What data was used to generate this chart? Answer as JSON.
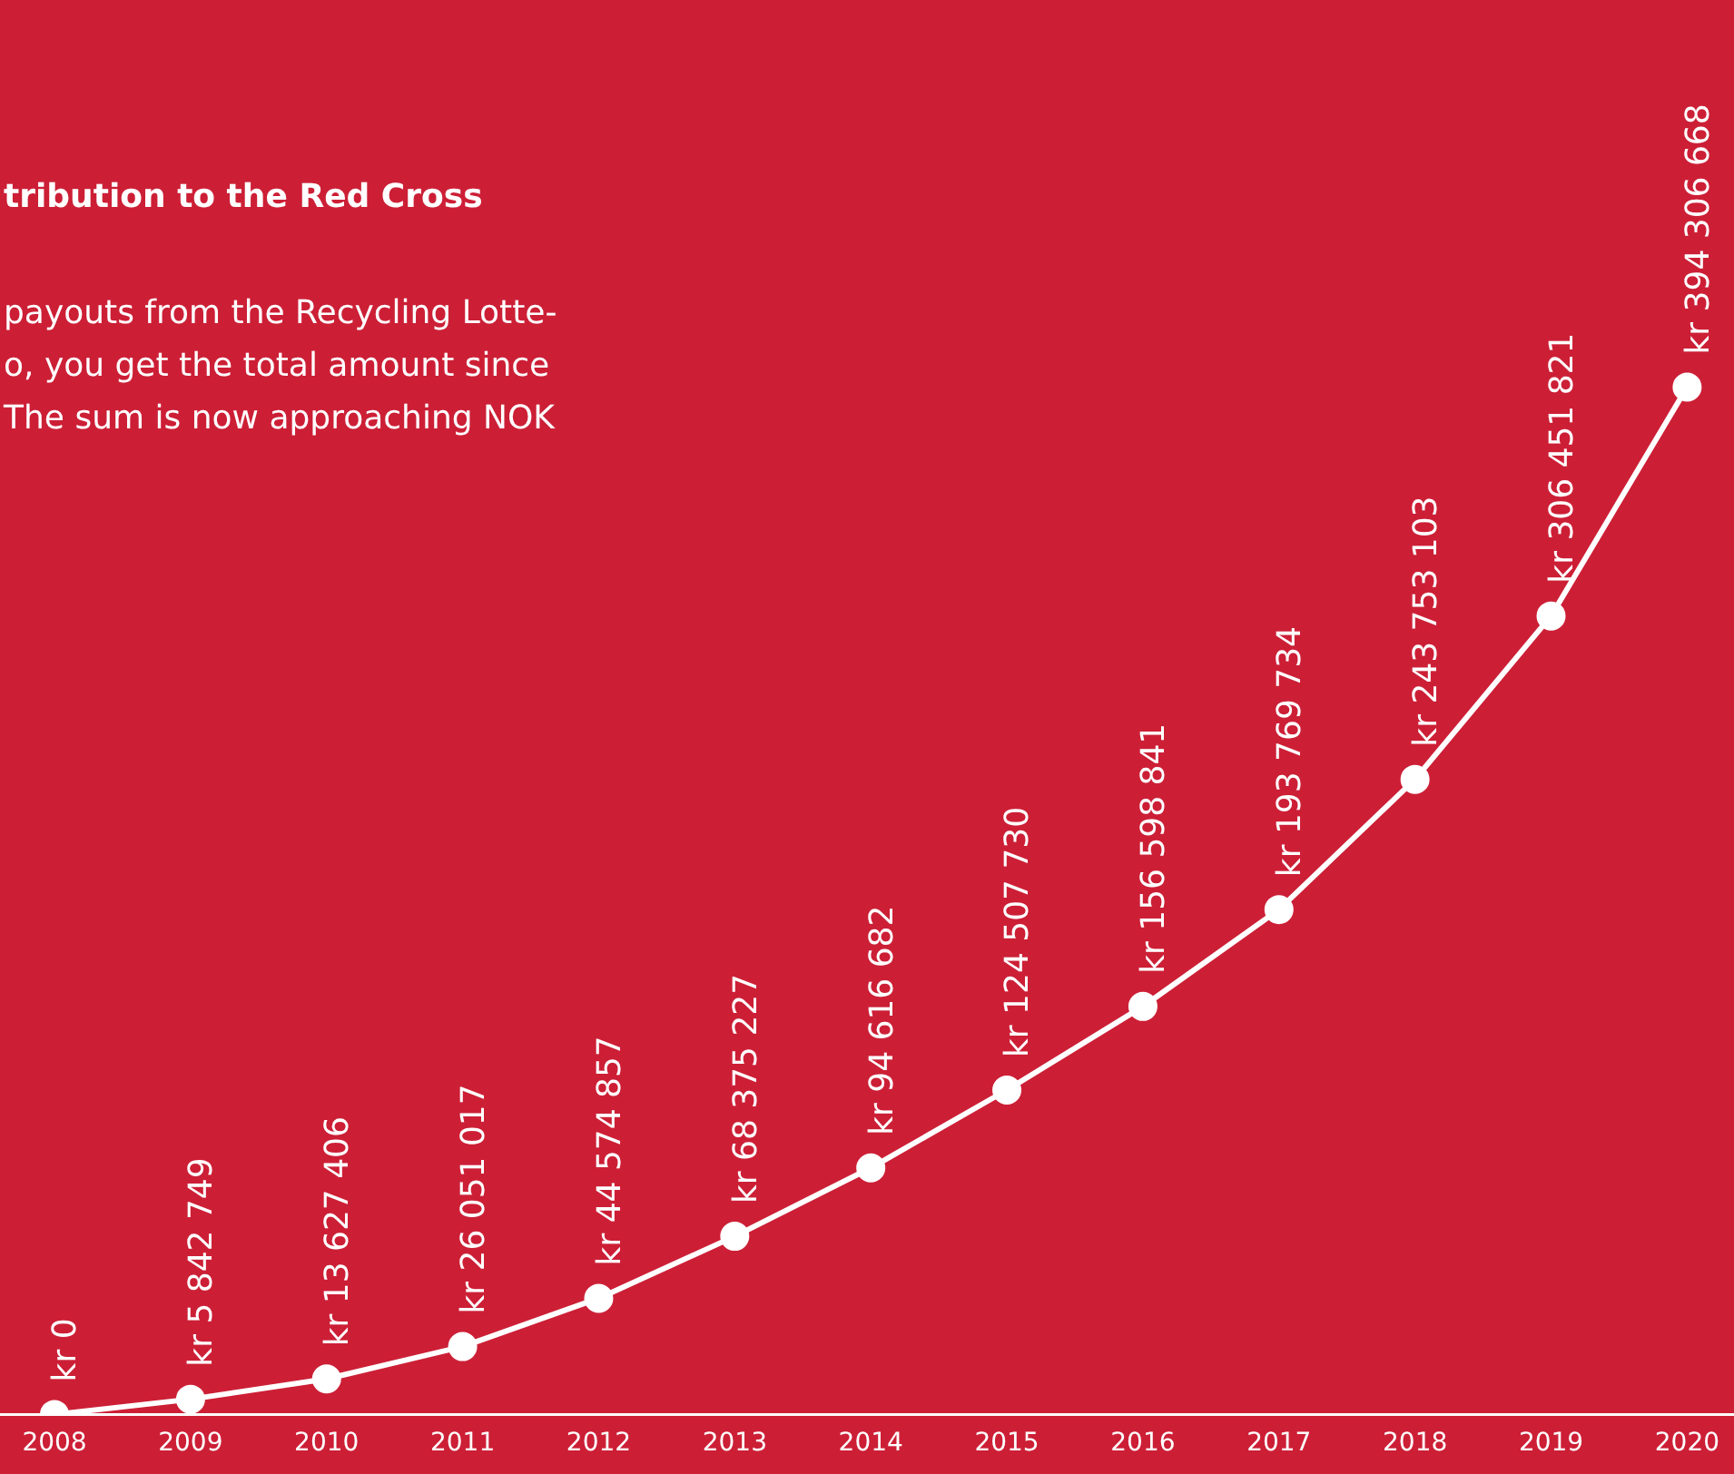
{
  "chart_data": {
    "type": "line",
    "title": "tribution to the Red Cross",
    "subtitle": "payouts from the Recycling Lotte-\no, you get the total amount since\nThe sum is now approaching NOK",
    "categories": [
      "2008",
      "2009",
      "2010",
      "2011",
      "2012",
      "2013",
      "2014",
      "2015",
      "2016",
      "2017",
      "2018",
      "2019",
      "2020"
    ],
    "series": [
      {
        "color": "#ffffff",
        "values": [
          0,
          5842749,
          13627406,
          26051017,
          44574857,
          68375227,
          94616682,
          124507730,
          156598841,
          193769734,
          243753103,
          306451821,
          394306668
        ],
        "value_labels": [
          "kr 0",
          "kr 5 842 749",
          "kr 13 627 406",
          "kr 26 051 017",
          "kr 44 574 857",
          "kr 68 375 227",
          "kr 94 616 682",
          "kr 124 507 730",
          "kr 156 598 841",
          "kr 193 769 734",
          "kr 243 753 103",
          "kr 306 451 821",
          "kr 394 306 668"
        ]
      }
    ],
    "marker": "circle",
    "line_style": "solid",
    "grid": false,
    "legend": false,
    "tick_labels": "x",
    "data_labels": true
  }
}
